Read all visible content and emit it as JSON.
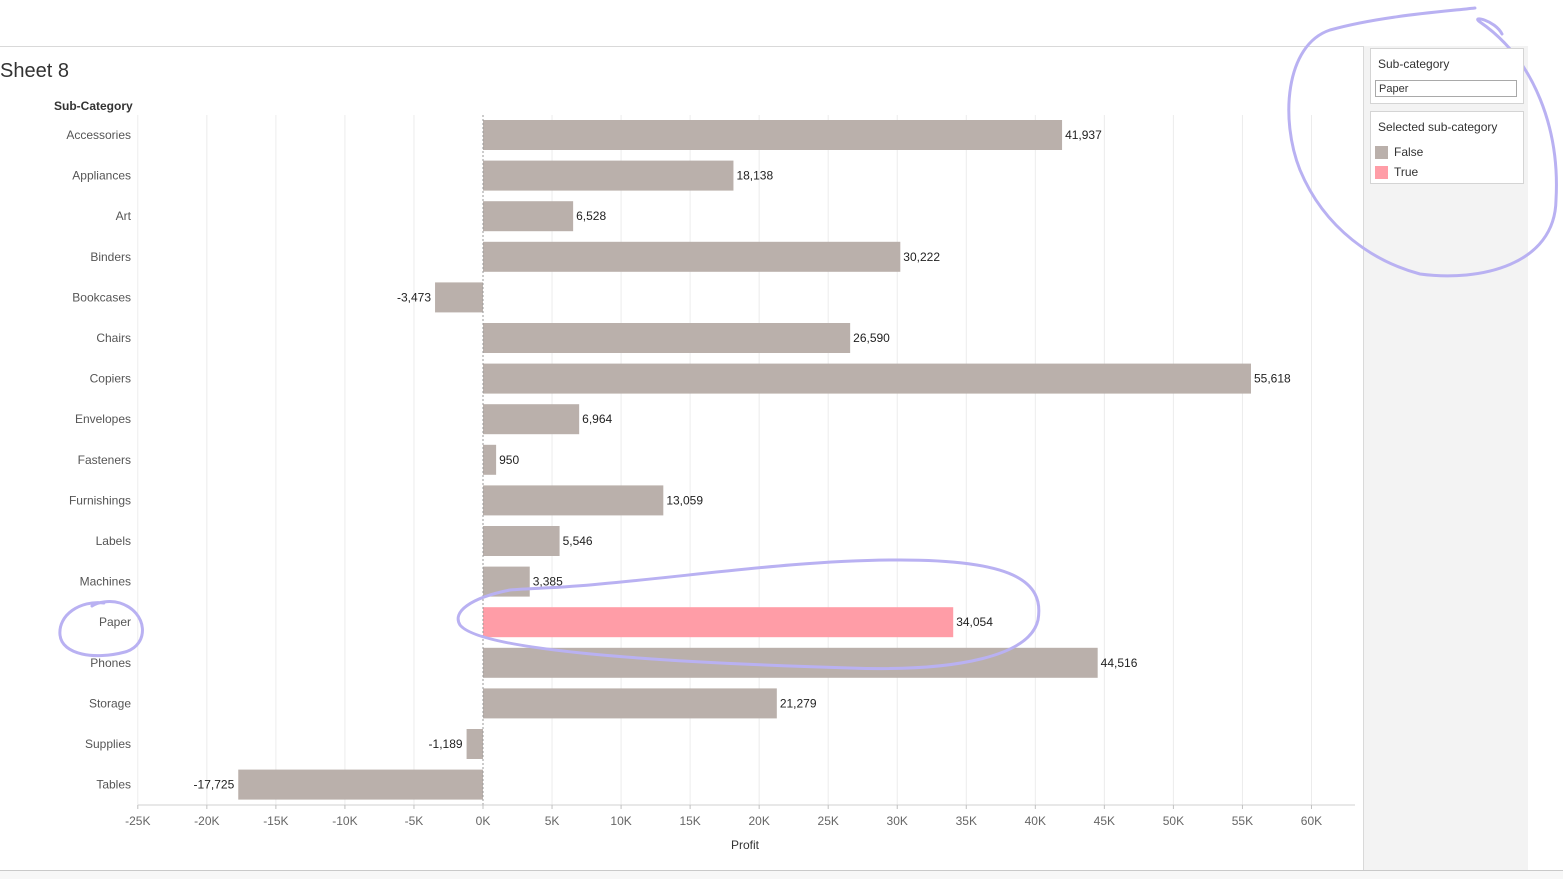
{
  "sheet": {
    "title": "Sheet 8"
  },
  "filter": {
    "title": "Sub-category",
    "value": "Paper"
  },
  "legend": {
    "title": "Selected sub-category",
    "items": [
      {
        "label": "False",
        "color": "#bab0ab"
      },
      {
        "label": "True",
        "color": "#ff9da7"
      }
    ]
  },
  "chart_data": {
    "type": "bar",
    "orientation": "horizontal",
    "row_header": "Sub-Category",
    "xlabel": "Profit",
    "xlim": [
      -25000,
      63000
    ],
    "xticks": [
      {
        "value": -25000,
        "label": "-25K"
      },
      {
        "value": -20000,
        "label": "-20K"
      },
      {
        "value": -15000,
        "label": "-15K"
      },
      {
        "value": -10000,
        "label": "-10K"
      },
      {
        "value": -5000,
        "label": "-5K"
      },
      {
        "value": 0,
        "label": "0K"
      },
      {
        "value": 5000,
        "label": "5K"
      },
      {
        "value": 10000,
        "label": "10K"
      },
      {
        "value": 15000,
        "label": "15K"
      },
      {
        "value": 20000,
        "label": "20K"
      },
      {
        "value": 25000,
        "label": "25K"
      },
      {
        "value": 30000,
        "label": "30K"
      },
      {
        "value": 35000,
        "label": "35K"
      },
      {
        "value": 40000,
        "label": "40K"
      },
      {
        "value": 45000,
        "label": "45K"
      },
      {
        "value": 50000,
        "label": "50K"
      },
      {
        "value": 55000,
        "label": "55K"
      },
      {
        "value": 60000,
        "label": "60K"
      }
    ],
    "grid": true,
    "categories": [
      "Accessories",
      "Appliances",
      "Art",
      "Binders",
      "Bookcases",
      "Chairs",
      "Copiers",
      "Envelopes",
      "Fasteners",
      "Furnishings",
      "Labels",
      "Machines",
      "Paper",
      "Phones",
      "Storage",
      "Supplies",
      "Tables"
    ],
    "values": [
      41937,
      18138,
      6528,
      30222,
      -3473,
      26590,
      55618,
      6964,
      950,
      13059,
      5546,
      3385,
      34054,
      44516,
      21279,
      -1189,
      -17725
    ],
    "labels": [
      "41,937",
      "18,138",
      "6,528",
      "30,222",
      "-3,473",
      "26,590",
      "55,618",
      "6,964",
      "950",
      "13,059",
      "5,546",
      "3,385",
      "34,054",
      "44,516",
      "21,279",
      "-1,189",
      "-17,725"
    ],
    "selected": [
      false,
      false,
      false,
      false,
      false,
      false,
      false,
      false,
      false,
      false,
      false,
      false,
      true,
      false,
      false,
      false,
      false
    ],
    "colors": {
      "false": "#bab0ab",
      "true": "#ff9da7"
    }
  },
  "annotation_color": "#b9b1f2"
}
